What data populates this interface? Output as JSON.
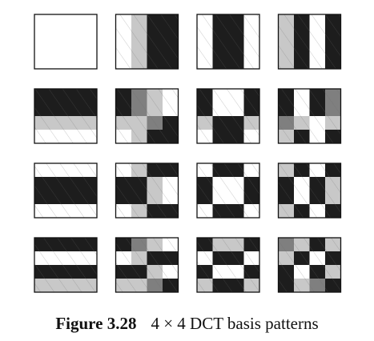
{
  "caption": {
    "label": "Figure 3.28",
    "text": "4 × 4 DCT basis patterns"
  },
  "colors": {
    "white": "#ffffff",
    "light": "#c8c8c8",
    "mid": "#7f7f7f",
    "dark": "#1d1d1d",
    "border": "#111111",
    "hatch": "#6a6a6a"
  },
  "grid_size": 4,
  "cell_size": 4,
  "basis_patterns": [
    [
      "WWWW",
      "WWWW",
      "WWWW",
      "WWWW"
    ],
    [
      "WLDD",
      "WLDD",
      "WLDD",
      "WLDD"
    ],
    [
      "WDDW",
      "WDDW",
      "WDDW",
      "WDDW"
    ],
    [
      "LDWD",
      "LDWD",
      "LDWD",
      "LDWD"
    ],
    [
      "DDDD",
      "DDDD",
      "LLLL",
      "WWWW"
    ],
    [
      "DMLW",
      "DMLW",
      "LLMD",
      "WLDD"
    ],
    [
      "DWWD",
      "DWWD",
      "LDDL",
      "WDDW"
    ],
    [
      "DWDM",
      "DWDM",
      "MLWL",
      "LDWD"
    ],
    [
      "WWWW",
      "DDDD",
      "DDDD",
      "WWWW"
    ],
    [
      "WLDD",
      "DDLW",
      "DDLW",
      "WLDD"
    ],
    [
      "WDDW",
      "DWWD",
      "DWWD",
      "WDDW"
    ],
    [
      "LDWD",
      "DWDL",
      "DWDL",
      "LDWD"
    ],
    [
      "DDDD",
      "WWWW",
      "DDDD",
      "LLLL"
    ],
    [
      "DMLW",
      "WLDD",
      "DDLW",
      "LLMD"
    ],
    [
      "DLLD",
      "WDDW",
      "DWWD",
      "LDDL"
    ],
    [
      "MLDL",
      "LDWD",
      "DWDL",
      "DLMD"
    ]
  ]
}
